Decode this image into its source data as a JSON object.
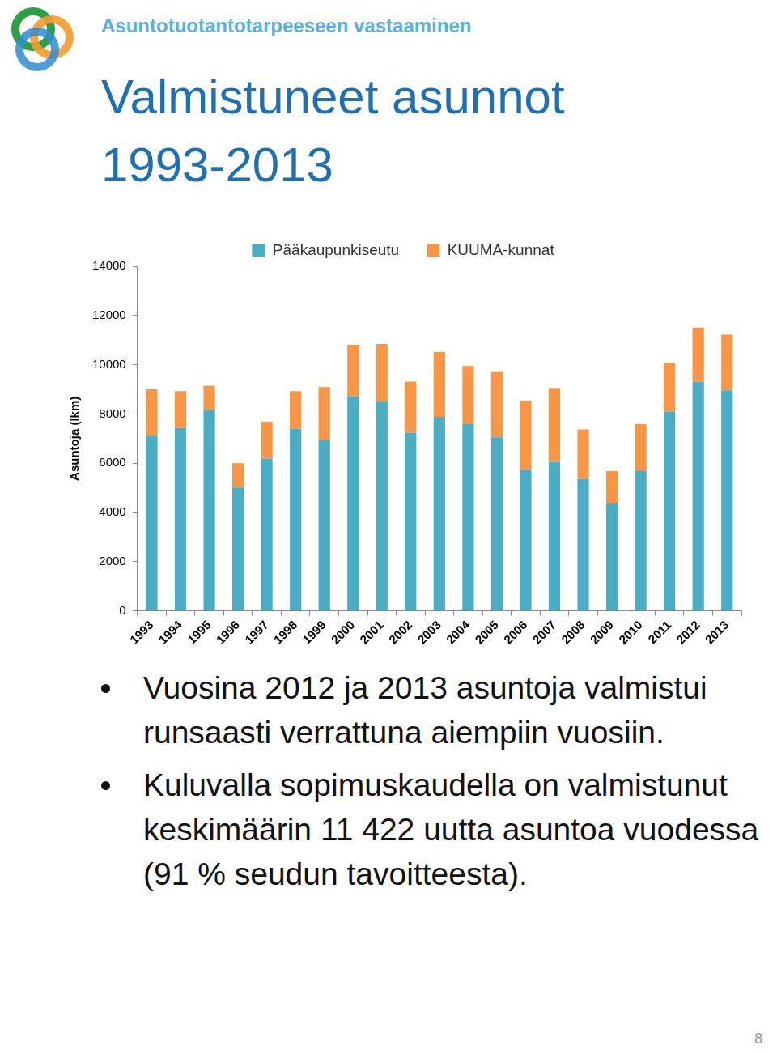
{
  "header": "Asuntotuotantotarpeeseen vastaaminen",
  "title": [
    "Valmistuneet asunnot",
    "1993-2013"
  ],
  "chart_data": {
    "type": "bar",
    "categories": [
      "1993",
      "1994",
      "1995",
      "1996",
      "1997",
      "1998",
      "1999",
      "2000",
      "2001",
      "2002",
      "2003",
      "2004",
      "2005",
      "2006",
      "2007",
      "2008",
      "2009",
      "2010",
      "2011",
      "2012",
      "2013"
    ],
    "series": [
      {
        "name": "Pääkaupunkiseutu",
        "color": "#4bacc6",
        "values": [
          7150,
          7430,
          8160,
          5010,
          6190,
          7400,
          6950,
          8710,
          8510,
          7240,
          7880,
          7590,
          7050,
          5740,
          6060,
          5360,
          4400,
          5680,
          8100,
          9310,
          8960
        ]
      },
      {
        "name": "KUUMA-kunnat",
        "color": "#f79646",
        "values": [
          1850,
          1500,
          990,
          990,
          1500,
          1530,
          2140,
          2100,
          2330,
          2070,
          2640,
          2360,
          2680,
          2810,
          3000,
          2010,
          1280,
          1910,
          1980,
          2200,
          2260
        ]
      }
    ],
    "y_label": "Asuntoja (lkm)",
    "ylim": [
      0,
      14000
    ],
    "yticks": [
      0,
      2000,
      4000,
      6000,
      8000,
      10000,
      12000,
      14000
    ],
    "stacked": true,
    "grid": false,
    "legend": "top"
  },
  "bullets": [
    "Vuosina 2012 ja 2013 asuntoja valmistui runsaasti verrattuna aiempiin vuosiin.",
    "Kuluvalla sopimuskaudella on valmistunut keskimäärin 11 422 uutta asuntoa vuodessa (91 % seudun tavoitteesta)."
  ],
  "page_number": 8
}
